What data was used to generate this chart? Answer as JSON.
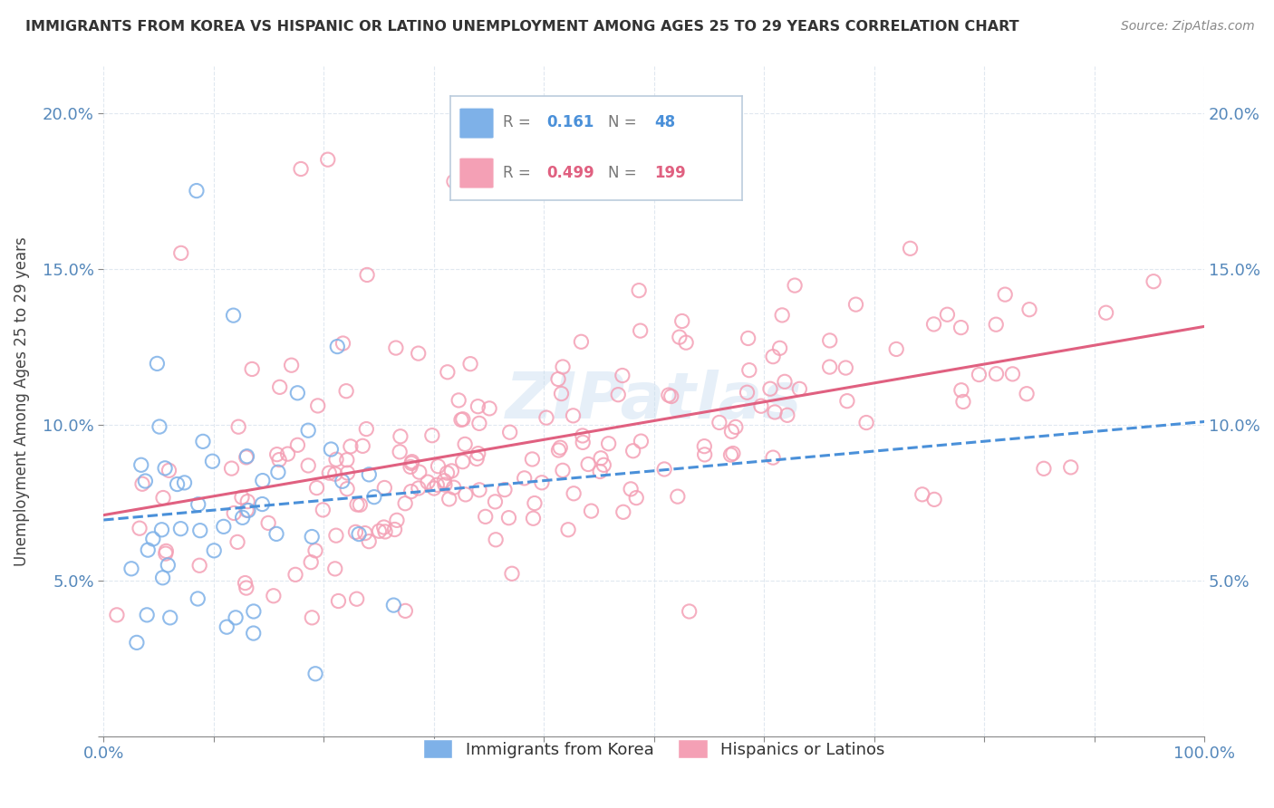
{
  "title": "IMMIGRANTS FROM KOREA VS HISPANIC OR LATINO UNEMPLOYMENT AMONG AGES 25 TO 29 YEARS CORRELATION CHART",
  "source": "Source: ZipAtlas.com",
  "ylabel_label": "Unemployment Among Ages 25 to 29 years",
  "xlim": [
    0,
    1.0
  ],
  "ylim": [
    0,
    0.215
  ],
  "x_ticks": [
    0.0,
    0.1,
    0.2,
    0.3,
    0.4,
    0.5,
    0.6,
    0.7,
    0.8,
    0.9,
    1.0
  ],
  "x_tick_labels": [
    "0.0%",
    "",
    "",
    "",
    "",
    "",
    "",
    "",
    "",
    "",
    "100.0%"
  ],
  "y_ticks": [
    0.0,
    0.05,
    0.1,
    0.15,
    0.2
  ],
  "y_tick_labels": [
    "",
    "5.0%",
    "10.0%",
    "15.0%",
    "20.0%"
  ],
  "korea_R": 0.161,
  "korea_N": 48,
  "hispanic_R": 0.499,
  "hispanic_N": 199,
  "korea_color": "#7EB1E8",
  "hispanic_color": "#F4A0B5",
  "korea_line_color": "#4A90D9",
  "hispanic_line_color": "#E06080",
  "watermark": "ZIPatlas",
  "background_color": "#ffffff",
  "grid_color": "#e0e8f0"
}
